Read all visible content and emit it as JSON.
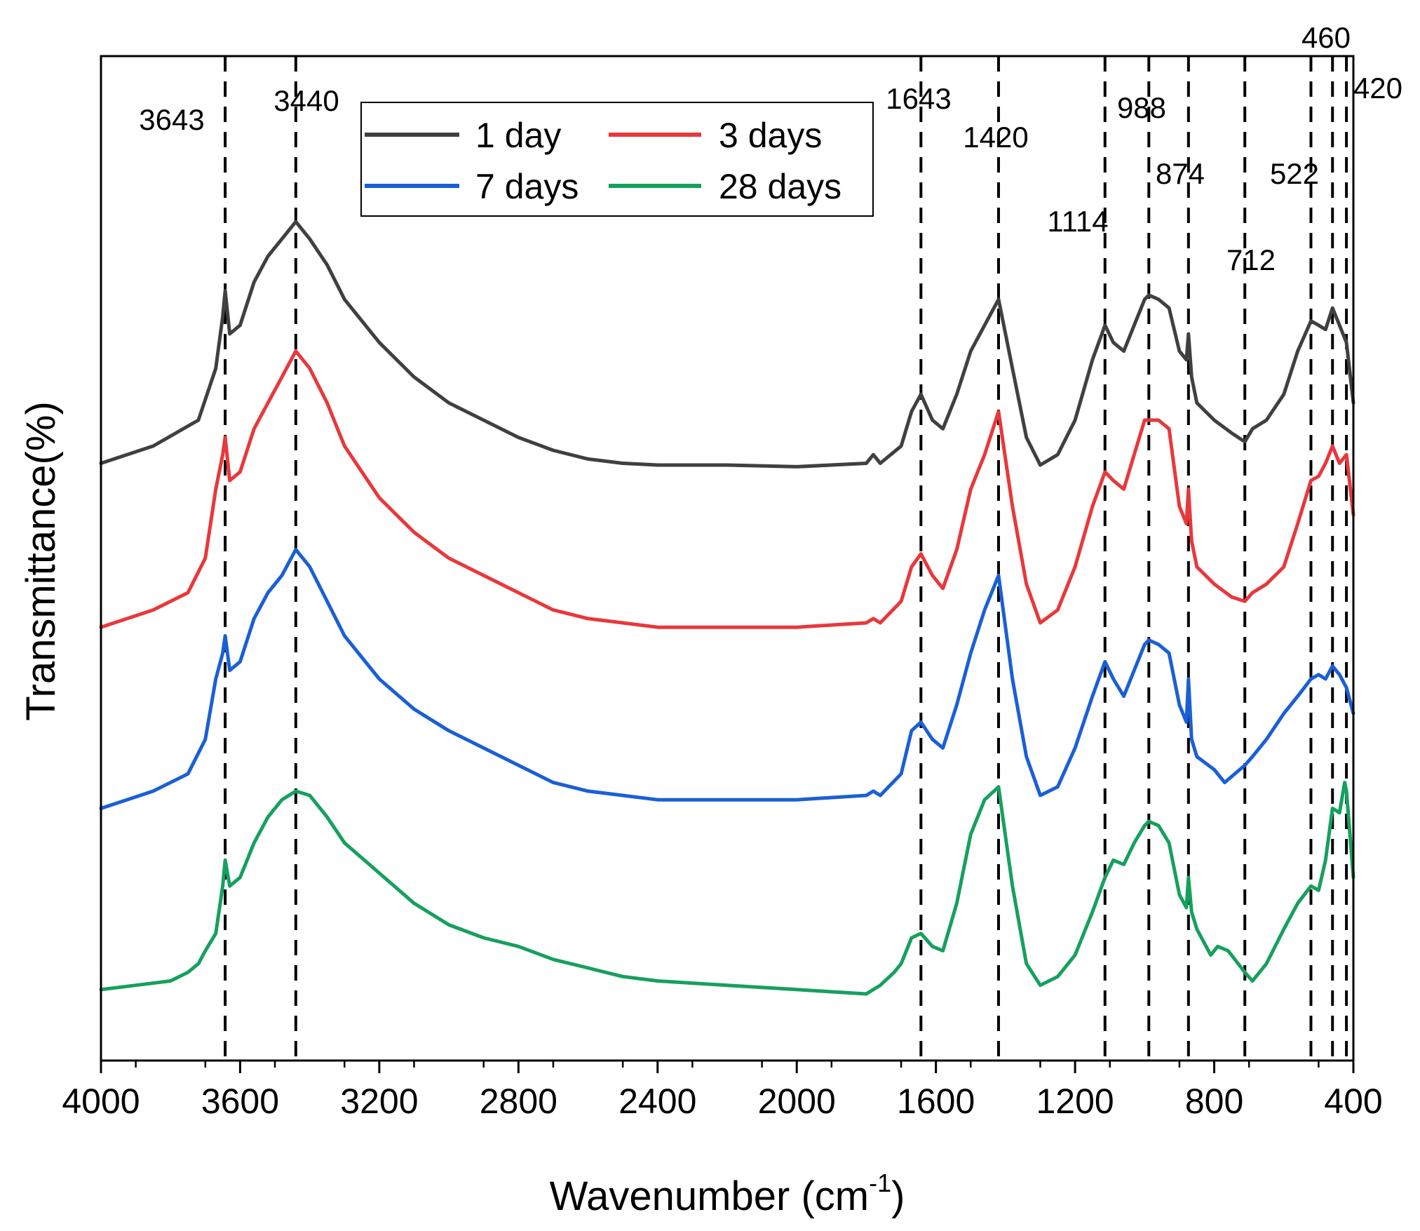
{
  "chart_data": {
    "type": "line",
    "title": "",
    "xlabel": "Wavenumber (cm",
    "xlabel_sup": "-1",
    "xlabel_close": ")",
    "ylabel": "Transmittance(%)",
    "xlim": [
      4000,
      400
    ],
    "ylim": [
      0,
      100
    ],
    "x_ticks": [
      4000,
      3600,
      3200,
      2800,
      2400,
      2000,
      1600,
      1200,
      800,
      400
    ],
    "x_tick_labels": [
      "4000",
      "3600",
      "3200",
      "2800",
      "2400",
      "2000",
      "1600",
      "1200",
      "800",
      "400"
    ],
    "legend_location": "top-center",
    "peaks": [
      {
        "x": 3643,
        "label": "3643"
      },
      {
        "x": 3440,
        "label": "3440"
      },
      {
        "x": 1643,
        "label": "1643"
      },
      {
        "x": 1420,
        "label": "1420"
      },
      {
        "x": 1114,
        "label": "1114"
      },
      {
        "x": 988,
        "label": "988"
      },
      {
        "x": 874,
        "label": "874"
      },
      {
        "x": 712,
        "label": "712"
      },
      {
        "x": 522,
        "label": "522"
      },
      {
        "x": 460,
        "label": "460"
      },
      {
        "x": 420,
        "label": "420"
      }
    ],
    "series": [
      {
        "name": "1 day",
        "color": "#404040",
        "points": [
          [
            4000,
            65
          ],
          [
            3850,
            67
          ],
          [
            3720,
            70
          ],
          [
            3670,
            76
          ],
          [
            3650,
            82
          ],
          [
            3643,
            85
          ],
          [
            3630,
            80
          ],
          [
            3600,
            81
          ],
          [
            3560,
            86
          ],
          [
            3520,
            89
          ],
          [
            3480,
            91
          ],
          [
            3440,
            93
          ],
          [
            3400,
            91
          ],
          [
            3350,
            88
          ],
          [
            3300,
            84
          ],
          [
            3200,
            79
          ],
          [
            3100,
            75
          ],
          [
            3000,
            72
          ],
          [
            2900,
            70
          ],
          [
            2800,
            68
          ],
          [
            2700,
            66.5
          ],
          [
            2600,
            65.5
          ],
          [
            2500,
            65
          ],
          [
            2400,
            64.8
          ],
          [
            2200,
            64.8
          ],
          [
            2000,
            64.6
          ],
          [
            1800,
            65
          ],
          [
            1780,
            66
          ],
          [
            1760,
            65
          ],
          [
            1700,
            67
          ],
          [
            1670,
            71
          ],
          [
            1643,
            73
          ],
          [
            1610,
            70
          ],
          [
            1580,
            69
          ],
          [
            1540,
            73
          ],
          [
            1500,
            78
          ],
          [
            1460,
            81
          ],
          [
            1420,
            84
          ],
          [
            1380,
            76
          ],
          [
            1340,
            68
          ],
          [
            1300,
            64.8
          ],
          [
            1250,
            66
          ],
          [
            1200,
            70
          ],
          [
            1150,
            77
          ],
          [
            1114,
            81
          ],
          [
            1090,
            79
          ],
          [
            1060,
            78
          ],
          [
            1030,
            81
          ],
          [
            1000,
            84
          ],
          [
            988,
            84.5
          ],
          [
            960,
            84
          ],
          [
            930,
            83
          ],
          [
            900,
            78
          ],
          [
            880,
            77
          ],
          [
            874,
            80
          ],
          [
            865,
            75
          ],
          [
            850,
            72
          ],
          [
            800,
            70
          ],
          [
            750,
            68.5
          ],
          [
            712,
            67.5
          ],
          [
            690,
            69
          ],
          [
            650,
            70
          ],
          [
            600,
            73
          ],
          [
            560,
            78
          ],
          [
            522,
            81.5
          ],
          [
            500,
            81
          ],
          [
            480,
            80.5
          ],
          [
            460,
            83
          ],
          [
            440,
            81
          ],
          [
            420,
            79
          ],
          [
            400,
            72
          ]
        ]
      },
      {
        "name": "3 days",
        "color": "#e8383b",
        "points": [
          [
            4000,
            46
          ],
          [
            3850,
            48
          ],
          [
            3750,
            50
          ],
          [
            3700,
            54
          ],
          [
            3670,
            62
          ],
          [
            3650,
            66
          ],
          [
            3643,
            68
          ],
          [
            3630,
            63
          ],
          [
            3600,
            64
          ],
          [
            3560,
            69
          ],
          [
            3520,
            72
          ],
          [
            3480,
            75
          ],
          [
            3440,
            78
          ],
          [
            3400,
            76
          ],
          [
            3350,
            72
          ],
          [
            3300,
            67
          ],
          [
            3200,
            61
          ],
          [
            3100,
            57
          ],
          [
            3000,
            54
          ],
          [
            2900,
            52
          ],
          [
            2800,
            50
          ],
          [
            2700,
            48
          ],
          [
            2600,
            47
          ],
          [
            2500,
            46.5
          ],
          [
            2400,
            46
          ],
          [
            2200,
            46
          ],
          [
            2000,
            46
          ],
          [
            1800,
            46.5
          ],
          [
            1780,
            47
          ],
          [
            1760,
            46.5
          ],
          [
            1700,
            49
          ],
          [
            1670,
            53
          ],
          [
            1643,
            54.5
          ],
          [
            1610,
            52
          ],
          [
            1580,
            50.5
          ],
          [
            1540,
            55
          ],
          [
            1500,
            62
          ],
          [
            1460,
            66
          ],
          [
            1420,
            71
          ],
          [
            1380,
            60
          ],
          [
            1340,
            51
          ],
          [
            1300,
            46.5
          ],
          [
            1250,
            48
          ],
          [
            1200,
            53
          ],
          [
            1150,
            60
          ],
          [
            1114,
            64
          ],
          [
            1090,
            63
          ],
          [
            1060,
            62
          ],
          [
            1030,
            66
          ],
          [
            1000,
            70
          ],
          [
            988,
            70
          ],
          [
            960,
            70
          ],
          [
            930,
            69
          ],
          [
            900,
            60
          ],
          [
            880,
            58
          ],
          [
            874,
            62
          ],
          [
            865,
            56
          ],
          [
            850,
            53
          ],
          [
            800,
            51
          ],
          [
            750,
            49.5
          ],
          [
            712,
            49
          ],
          [
            690,
            50
          ],
          [
            650,
            51
          ],
          [
            600,
            53
          ],
          [
            560,
            58
          ],
          [
            522,
            63
          ],
          [
            500,
            63.5
          ],
          [
            480,
            65
          ],
          [
            460,
            67
          ],
          [
            440,
            65
          ],
          [
            420,
            66
          ],
          [
            400,
            59
          ]
        ]
      },
      {
        "name": "7 days",
        "color": "#1a5fd6",
        "points": [
          [
            4000,
            25
          ],
          [
            3850,
            27
          ],
          [
            3750,
            29
          ],
          [
            3700,
            33
          ],
          [
            3670,
            40
          ],
          [
            3650,
            43
          ],
          [
            3643,
            45
          ],
          [
            3630,
            41
          ],
          [
            3600,
            42
          ],
          [
            3560,
            47
          ],
          [
            3520,
            50
          ],
          [
            3480,
            52
          ],
          [
            3440,
            55
          ],
          [
            3400,
            53
          ],
          [
            3350,
            49
          ],
          [
            3300,
            45
          ],
          [
            3200,
            40
          ],
          [
            3100,
            36.5
          ],
          [
            3000,
            34
          ],
          [
            2900,
            32
          ],
          [
            2800,
            30
          ],
          [
            2700,
            28
          ],
          [
            2600,
            27
          ],
          [
            2500,
            26.5
          ],
          [
            2400,
            26
          ],
          [
            2200,
            26
          ],
          [
            2000,
            26
          ],
          [
            1800,
            26.5
          ],
          [
            1780,
            27
          ],
          [
            1760,
            26.5
          ],
          [
            1700,
            29
          ],
          [
            1670,
            34
          ],
          [
            1643,
            35
          ],
          [
            1610,
            33
          ],
          [
            1580,
            32
          ],
          [
            1540,
            37
          ],
          [
            1500,
            43
          ],
          [
            1460,
            48
          ],
          [
            1420,
            52
          ],
          [
            1380,
            40
          ],
          [
            1340,
            31
          ],
          [
            1300,
            26.5
          ],
          [
            1250,
            27.5
          ],
          [
            1200,
            32
          ],
          [
            1150,
            38
          ],
          [
            1114,
            42
          ],
          [
            1090,
            40
          ],
          [
            1060,
            38
          ],
          [
            1030,
            41
          ],
          [
            1000,
            44
          ],
          [
            988,
            44.5
          ],
          [
            960,
            44
          ],
          [
            930,
            43
          ],
          [
            900,
            37
          ],
          [
            880,
            35
          ],
          [
            874,
            40
          ],
          [
            865,
            33
          ],
          [
            850,
            31
          ],
          [
            800,
            29.5
          ],
          [
            770,
            28
          ],
          [
            712,
            30
          ],
          [
            690,
            31
          ],
          [
            650,
            33
          ],
          [
            600,
            36
          ],
          [
            560,
            38
          ],
          [
            522,
            40
          ],
          [
            500,
            40.5
          ],
          [
            480,
            40
          ],
          [
            460,
            41.5
          ],
          [
            440,
            40.5
          ],
          [
            420,
            39
          ],
          [
            400,
            36
          ]
        ]
      },
      {
        "name": "28 days",
        "color": "#16a05e",
        "points": [
          [
            4000,
            4
          ],
          [
            3900,
            4.5
          ],
          [
            3800,
            5
          ],
          [
            3750,
            6
          ],
          [
            3720,
            7
          ],
          [
            3700,
            8.5
          ],
          [
            3670,
            10.5
          ],
          [
            3650,
            16
          ],
          [
            3643,
            19
          ],
          [
            3630,
            16
          ],
          [
            3600,
            17
          ],
          [
            3560,
            21
          ],
          [
            3520,
            24
          ],
          [
            3480,
            26
          ],
          [
            3440,
            27
          ],
          [
            3400,
            26.5
          ],
          [
            3350,
            24
          ],
          [
            3300,
            21
          ],
          [
            3200,
            17.5
          ],
          [
            3100,
            14
          ],
          [
            3000,
            11.5
          ],
          [
            2900,
            10
          ],
          [
            2800,
            9
          ],
          [
            2700,
            7.5
          ],
          [
            2600,
            6.5
          ],
          [
            2500,
            5.5
          ],
          [
            2400,
            5
          ],
          [
            2200,
            4.5
          ],
          [
            2000,
            4
          ],
          [
            1800,
            3.5
          ],
          [
            1780,
            4
          ],
          [
            1760,
            4.5
          ],
          [
            1720,
            6
          ],
          [
            1700,
            7
          ],
          [
            1670,
            10
          ],
          [
            1643,
            10.5
          ],
          [
            1610,
            9
          ],
          [
            1580,
            8.5
          ],
          [
            1540,
            14
          ],
          [
            1500,
            22
          ],
          [
            1460,
            26
          ],
          [
            1420,
            27.5
          ],
          [
            1380,
            16
          ],
          [
            1340,
            7
          ],
          [
            1300,
            4.5
          ],
          [
            1250,
            5.5
          ],
          [
            1200,
            8
          ],
          [
            1150,
            13
          ],
          [
            1114,
            17
          ],
          [
            1090,
            19
          ],
          [
            1060,
            18.5
          ],
          [
            1030,
            21
          ],
          [
            1000,
            23
          ],
          [
            988,
            23.5
          ],
          [
            960,
            23
          ],
          [
            930,
            21
          ],
          [
            900,
            15
          ],
          [
            880,
            13.5
          ],
          [
            874,
            17
          ],
          [
            865,
            13
          ],
          [
            850,
            11
          ],
          [
            810,
            8
          ],
          [
            790,
            9
          ],
          [
            760,
            8.5
          ],
          [
            712,
            6
          ],
          [
            690,
            5
          ],
          [
            650,
            7
          ],
          [
            600,
            11
          ],
          [
            560,
            14
          ],
          [
            522,
            16
          ],
          [
            500,
            15.5
          ],
          [
            480,
            19
          ],
          [
            460,
            25
          ],
          [
            440,
            24.5
          ],
          [
            425,
            28
          ],
          [
            420,
            27
          ],
          [
            400,
            17
          ]
        ]
      }
    ]
  }
}
